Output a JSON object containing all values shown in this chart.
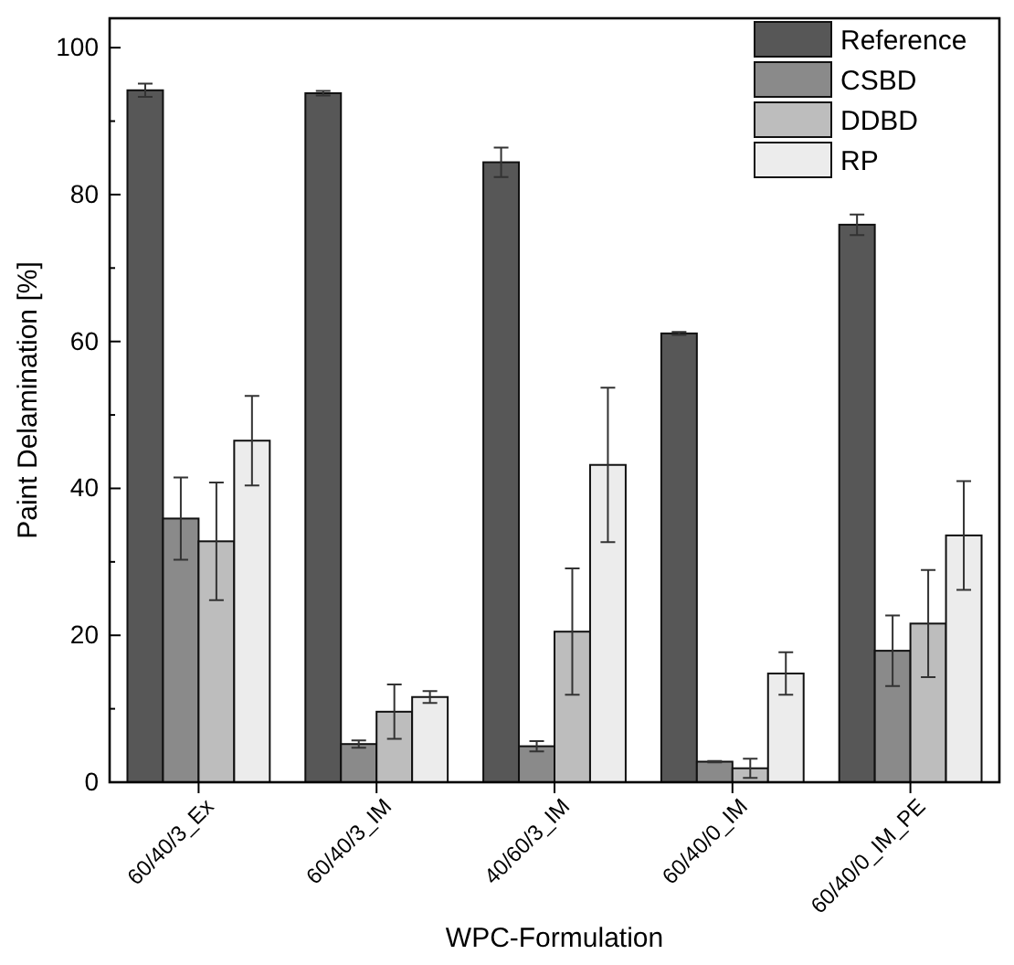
{
  "chart_data": {
    "type": "bar",
    "xlabel": "WPC-Formulation",
    "ylabel": "Paint Delamination [%]",
    "categories": [
      "60/40/3_Ex",
      "60/40/3_IM",
      "40/60/3_IM",
      "60/40/0_IM",
      "60/40/0_IM_PE"
    ],
    "series": [
      {
        "name": "Reference",
        "color": "#575757",
        "values": [
          94.2,
          93.8,
          84.4,
          61.1,
          75.9
        ],
        "errors": [
          0.9,
          0.3,
          2,
          0.2,
          1.4
        ]
      },
      {
        "name": "CSBD",
        "color": "#8a8a8a",
        "values": [
          35.9,
          5.2,
          4.9,
          2.8,
          17.9
        ],
        "errors": [
          5.6,
          0.5,
          0.7,
          0.1,
          4.8
        ]
      },
      {
        "name": "DDBD",
        "color": "#bdbdbd",
        "values": [
          32.8,
          9.6,
          20.5,
          1.9,
          21.6
        ],
        "errors": [
          8,
          3.7,
          8.6,
          1.3,
          7.3
        ]
      },
      {
        "name": "RP",
        "color": "#ececec",
        "values": [
          46.5,
          11.6,
          43.2,
          14.8,
          33.6
        ],
        "errors": [
          6.1,
          0.8,
          10.5,
          2.9,
          7.4
        ]
      }
    ],
    "ylim": [
      0,
      104
    ],
    "yticks": [
      0,
      {
        "value": 10,
        "label": null
      },
      20,
      {
        "value": 30,
        "label": null
      },
      40,
      {
        "value": 50,
        "label": null
      },
      60,
      {
        "value": 70,
        "label": null
      },
      80,
      {
        "value": 90,
        "label": null
      },
      100
    ],
    "grid": false,
    "legend": "top right"
  }
}
